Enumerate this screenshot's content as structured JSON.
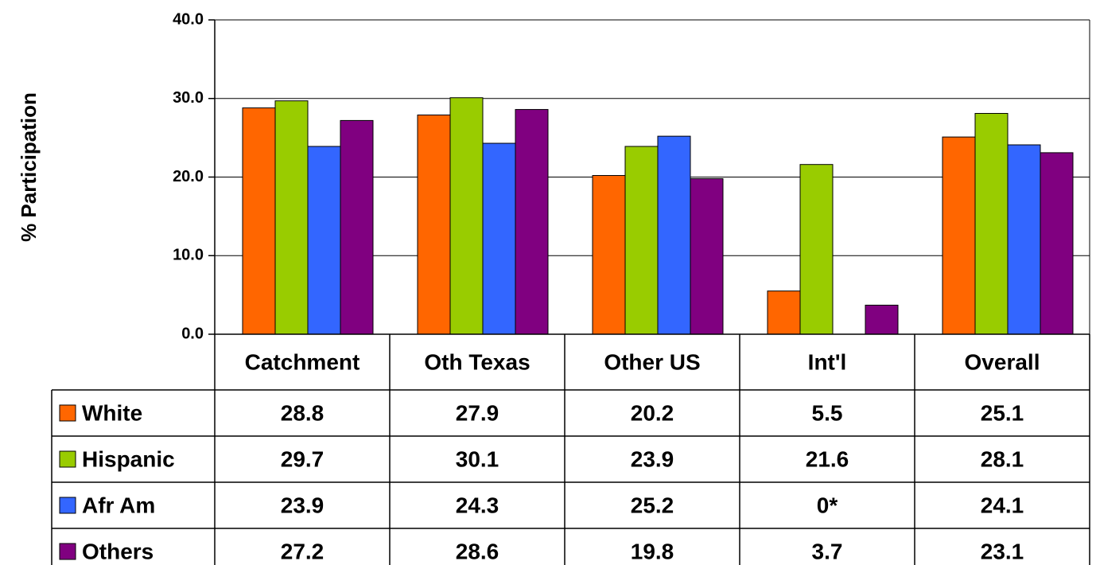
{
  "chart_data": {
    "type": "bar",
    "y_label": "% Participation",
    "categories": [
      "Catchment",
      "Oth Texas",
      "Other US",
      "Int'l",
      "Overall"
    ],
    "series": [
      {
        "name": "White",
        "color": "#ff6600",
        "values": [
          28.8,
          27.9,
          20.2,
          5.5,
          25.1
        ]
      },
      {
        "name": "Hispanic",
        "color": "#99cc00",
        "values": [
          29.7,
          30.1,
          23.9,
          21.6,
          28.1
        ]
      },
      {
        "name": "Afr Am",
        "color": "#3366ff",
        "values": [
          23.9,
          24.3,
          25.2,
          0,
          24.1
        ],
        "value_labels": [
          "23.9",
          "24.3",
          "25.2",
          "0*",
          "24.1"
        ]
      },
      {
        "name": "Others",
        "color": "#800080",
        "values": [
          27.2,
          28.6,
          19.8,
          3.7,
          23.1
        ]
      }
    ],
    "ylim": [
      0,
      40
    ],
    "yticks": [
      {
        "value": 0,
        "label": "0.0"
      },
      {
        "value": 10,
        "label": "10.0"
      },
      {
        "value": 20,
        "label": "20.0"
      },
      {
        "value": 30,
        "label": "30.0"
      },
      {
        "value": 40,
        "label": "40.0"
      }
    ],
    "grid": true
  }
}
